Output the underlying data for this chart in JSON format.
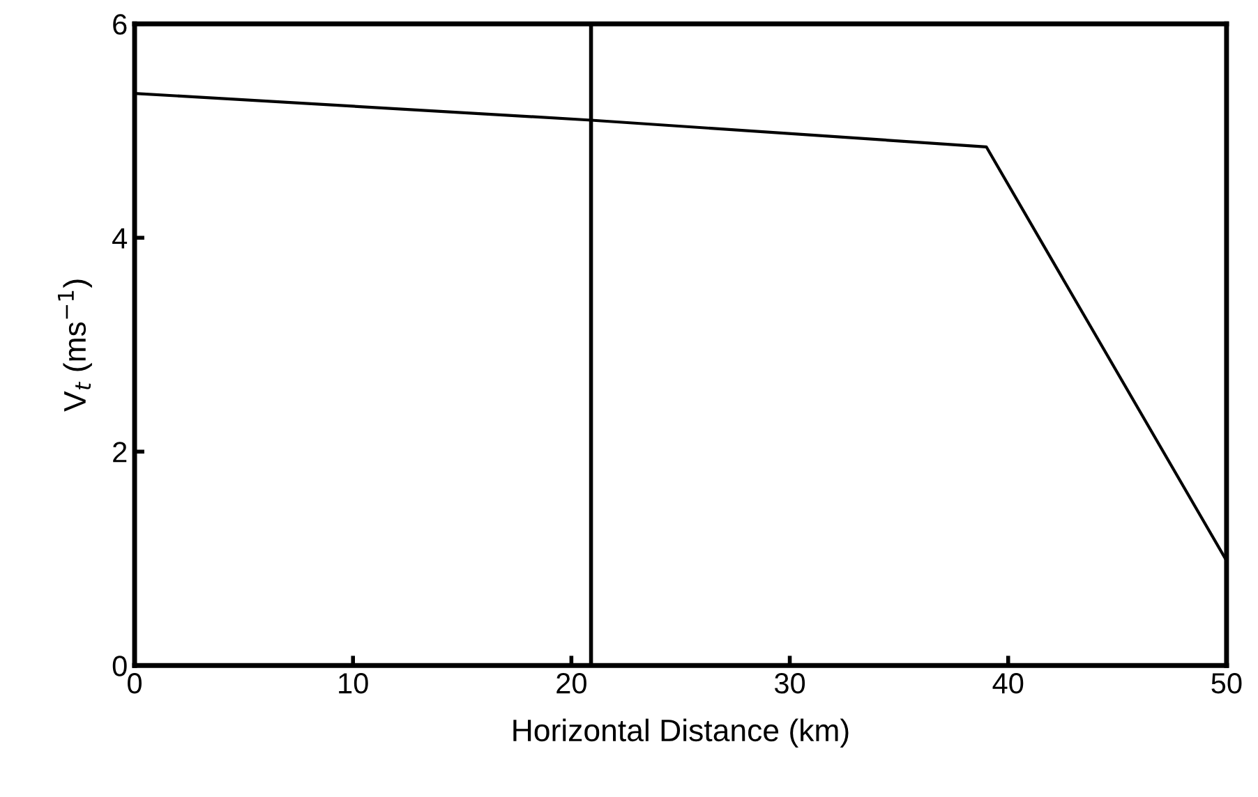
{
  "chart_data": {
    "type": "line",
    "xlabel": "Horizontal Distance (km)",
    "ylabel": "V$_{t}$ (ms$^{−1}$)",
    "x": [
      0,
      20.9,
      39.0,
      50
    ],
    "series": [
      {
        "color": "#000000",
        "values": [
          5.35,
          5.1,
          4.85,
          0.98
        ]
      }
    ],
    "xlim": [
      0,
      50
    ],
    "xticks": [
      0,
      10,
      20,
      30,
      40,
      50
    ],
    "ylim": [
      0,
      6
    ],
    "yticks": [
      0,
      2,
      4,
      6
    ],
    "ref_lines": [
      {
        "axis": "x",
        "value": 20.9,
        "color": "#000000"
      }
    ],
    "grid": false,
    "legend": false,
    "marker": "none",
    "line_style": "solid"
  }
}
